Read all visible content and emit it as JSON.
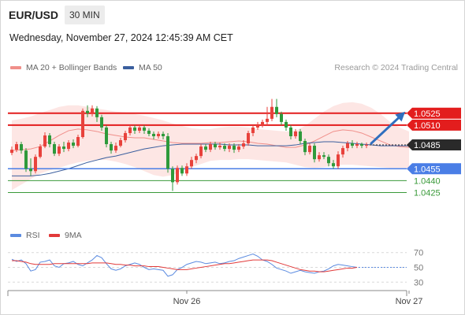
{
  "header": {
    "symbol": "EUR/USD",
    "timeframe": "30 MIN",
    "datetime": "Wednesday, November 27, 2024 12:45:39 AM CET"
  },
  "legend": {
    "ma20_label": "MA 20 + Bollinger Bands",
    "ma50_label": "MA 50",
    "credit": "Research © 2024 Trading Central",
    "rsi_label": "RSI",
    "ma9_label": "9MA"
  },
  "colors": {
    "bull": "#e8423c",
    "bear": "#2e9a3b",
    "ma20": "#f08f8a",
    "bollinger_fill": "#fde3e1",
    "ma50": "#3b5f9e",
    "resistance": "#e31d1d",
    "support_blue": "#4a7ee6",
    "support_green": "#3a9a3a",
    "current": "#2a2a2a",
    "arrow": "#2f6fbf",
    "rsi": "#5b8be0",
    "rsi_ma": "#e23a3a"
  },
  "chart_data": {
    "type": "candlestick",
    "symbol": "EUR/USD",
    "timeframe": "30 MIN",
    "ylim": [
      1.04175,
      1.05705
    ],
    "x_labels": [
      {
        "label": "Nov 26",
        "index": 37
      },
      {
        "label": "Nov 27",
        "index": 84
      }
    ],
    "price_levels": [
      {
        "label": "1.0525",
        "value": 1.0525,
        "style": "resistance"
      },
      {
        "label": "1.0510",
        "value": 1.051,
        "style": "resistance"
      },
      {
        "label": "1.0485",
        "value": 1.0485,
        "style": "current"
      },
      {
        "label": "1.0455",
        "value": 1.0455,
        "style": "support_blue"
      },
      {
        "label": "1.0440",
        "value": 1.044,
        "style": "support_green"
      },
      {
        "label": "1.0425",
        "value": 1.0425,
        "style": "support_green"
      }
    ],
    "forecast": {
      "direction": "up",
      "from": 1.0485,
      "to": 1.0525
    },
    "candles": [
      [
        1.0475,
        1.0479,
        1.0483,
        1.0472
      ],
      [
        1.0479,
        1.0486,
        1.0489,
        1.0476
      ],
      [
        1.0486,
        1.0478,
        1.0489,
        1.0474
      ],
      [
        1.0478,
        1.0455,
        1.0481,
        1.0451
      ],
      [
        1.0455,
        1.0452,
        1.0468,
        1.0446
      ],
      [
        1.0452,
        1.047,
        1.0473,
        1.0449
      ],
      [
        1.047,
        1.0483,
        1.0486,
        1.0468
      ],
      [
        1.0483,
        1.0497,
        1.0501,
        1.0481
      ],
      [
        1.0497,
        1.0486,
        1.05,
        1.0482
      ],
      [
        1.0486,
        1.0474,
        1.0489,
        1.0471
      ],
      [
        1.0474,
        1.0483,
        1.0486,
        1.0471
      ],
      [
        1.0483,
        1.048,
        1.0489,
        1.0476
      ],
      [
        1.048,
        1.0488,
        1.0491,
        1.0477
      ],
      [
        1.0488,
        1.0484,
        1.0492,
        1.0481
      ],
      [
        1.0484,
        1.0495,
        1.0498,
        1.0482
      ],
      [
        1.0495,
        1.0528,
        1.0531,
        1.0493
      ],
      [
        1.0528,
        1.0525,
        1.0535,
        1.052
      ],
      [
        1.0525,
        1.0531,
        1.0535,
        1.0521
      ],
      [
        1.0531,
        1.052,
        1.0534,
        1.0514
      ],
      [
        1.052,
        1.0507,
        1.0523,
        1.0503
      ],
      [
        1.0507,
        1.0486,
        1.051,
        1.0482
      ],
      [
        1.0486,
        1.0478,
        1.0489,
        1.0474
      ],
      [
        1.0478,
        1.0484,
        1.0488,
        1.0475
      ],
      [
        1.0484,
        1.0491,
        1.0494,
        1.0482
      ],
      [
        1.0491,
        1.05,
        1.0503,
        1.0488
      ],
      [
        1.05,
        1.0507,
        1.051,
        1.0497
      ],
      [
        1.0507,
        1.0503,
        1.051,
        1.0499
      ],
      [
        1.0503,
        1.0507,
        1.051,
        1.05
      ],
      [
        1.0507,
        1.0503,
        1.051,
        1.0499
      ],
      [
        1.0503,
        1.0499,
        1.0506,
        1.0496
      ],
      [
        1.0499,
        1.0496,
        1.0502,
        1.0492
      ],
      [
        1.0496,
        1.0499,
        1.0502,
        1.0493
      ],
      [
        1.0499,
        1.0496,
        1.0502,
        1.0492
      ],
      [
        1.0496,
        1.0455,
        1.05,
        1.045
      ],
      [
        1.0455,
        1.0438,
        1.0458,
        1.0427
      ],
      [
        1.0438,
        1.0456,
        1.0459,
        1.0435
      ],
      [
        1.0456,
        1.0449,
        1.0459,
        1.0446
      ],
      [
        1.0449,
        1.0458,
        1.0462,
        1.0446
      ],
      [
        1.0458,
        1.0466,
        1.047,
        1.0455
      ],
      [
        1.0466,
        1.0471,
        1.0474,
        1.0462
      ],
      [
        1.0471,
        1.0483,
        1.0486,
        1.0468
      ],
      [
        1.0483,
        1.0479,
        1.0486,
        1.0476
      ],
      [
        1.0479,
        1.0486,
        1.0489,
        1.0476
      ],
      [
        1.0486,
        1.0482,
        1.0489,
        1.0479
      ],
      [
        1.0482,
        1.0484,
        1.0488,
        1.0479
      ],
      [
        1.0484,
        1.048,
        1.0487,
        1.0477
      ],
      [
        1.048,
        1.0484,
        1.0487,
        1.0476
      ],
      [
        1.0484,
        1.0479,
        1.0487,
        1.0475
      ],
      [
        1.0479,
        1.0483,
        1.0486,
        1.0476
      ],
      [
        1.0483,
        1.0487,
        1.0491,
        1.048
      ],
      [
        1.0487,
        1.05,
        1.0503,
        1.0484
      ],
      [
        1.05,
        1.0507,
        1.051,
        1.0496
      ],
      [
        1.0507,
        1.051,
        1.0514,
        1.0504
      ],
      [
        1.051,
        1.0514,
        1.0517,
        1.0507
      ],
      [
        1.0514,
        1.0518,
        1.0533,
        1.051
      ],
      [
        1.0518,
        1.0533,
        1.0543,
        1.0515
      ],
      [
        1.0533,
        1.0524,
        1.0543,
        1.052
      ],
      [
        1.0524,
        1.0514,
        1.0527,
        1.051
      ],
      [
        1.0514,
        1.0507,
        1.0517,
        1.0503
      ],
      [
        1.0507,
        1.0496,
        1.051,
        1.0492
      ],
      [
        1.0496,
        1.0502,
        1.0505,
        1.0493
      ],
      [
        1.0502,
        1.049,
        1.0505,
        1.0486
      ],
      [
        1.049,
        1.0476,
        1.0493,
        1.0472
      ],
      [
        1.0476,
        1.0484,
        1.0487,
        1.0473
      ],
      [
        1.0484,
        1.0467,
        1.0487,
        1.0463
      ],
      [
        1.0467,
        1.0472,
        1.0476,
        1.0464
      ],
      [
        1.0472,
        1.047,
        1.0476,
        1.0467
      ],
      [
        1.047,
        1.0462,
        1.0473,
        1.0458
      ],
      [
        1.0462,
        1.0458,
        1.0466,
        1.0455
      ],
      [
        1.0458,
        1.0473,
        1.0477,
        1.0455
      ],
      [
        1.0473,
        1.0481,
        1.0484,
        1.0469
      ],
      [
        1.0481,
        1.0487,
        1.049,
        1.0477
      ],
      [
        1.0487,
        1.0484,
        1.0491,
        1.0481
      ],
      [
        1.0484,
        1.0486,
        1.0489,
        1.0481
      ],
      [
        1.0486,
        1.0484,
        1.0488,
        1.0481
      ],
      [
        1.0484,
        1.0485,
        1.0488,
        1.0481
      ]
    ],
    "bollinger": {
      "ma20": [
        1.0478,
        1.0479,
        1.048,
        1.0483,
        1.049,
        1.0497,
        1.0503,
        1.0505,
        1.0504,
        1.0502,
        1.0499,
        1.0497,
        1.0495,
        1.0494,
        1.0494,
        1.0492,
        1.049,
        1.0488,
        1.0487,
        1.0487,
        1.0487,
        1.0488,
        1.0488,
        1.0489,
        1.049,
        1.0489,
        1.0487,
        1.0486,
        1.0484,
        1.0482,
        1.0482,
        1.0485,
        1.049,
        1.0496,
        1.0502,
        1.0504,
        1.0503,
        1.05,
        1.0495,
        1.049,
        1.0485,
        1.0483,
        1.0482
      ],
      "upper": [
        1.0516,
        1.0518,
        1.0521,
        1.0525,
        1.0529,
        1.0533,
        1.0535,
        1.0535,
        1.0533,
        1.0531,
        1.0529,
        1.0527,
        1.0526,
        1.0524,
        1.0522,
        1.0519,
        1.0516,
        1.0512,
        1.0509,
        1.0506,
        1.0505,
        1.0505,
        1.0507,
        1.0508,
        1.0508,
        1.0507,
        1.0505,
        1.0504,
        1.0503,
        1.0502,
        1.0503,
        1.0509,
        1.0518,
        1.0527,
        1.0534,
        1.0538,
        1.0539,
        1.0537,
        1.0532,
        1.0524,
        1.0514,
        1.0507,
        1.0502
      ],
      "lower": [
        1.0428,
        1.0435,
        1.0442,
        1.0449,
        1.0453,
        1.0456,
        1.046,
        1.0463,
        1.0465,
        1.0466,
        1.0466,
        1.0464,
        1.0461,
        1.0457,
        1.0452,
        1.0447,
        1.0445,
        1.0447,
        1.0452,
        1.0457,
        1.0461,
        1.0465,
        1.0466,
        1.0466,
        1.0467,
        1.0467,
        1.0466,
        1.0465,
        1.0464,
        1.0463,
        1.046,
        1.0457,
        1.0456,
        1.0457,
        1.0459,
        1.046,
        1.046,
        1.0459,
        1.0458,
        1.0457,
        1.0456,
        1.0456,
        1.0456
      ]
    },
    "ma50": [
      1.0446,
      1.0446,
      1.0446,
      1.0447,
      1.0449,
      1.0452,
      1.0455,
      1.0459,
      1.0463,
      1.0466,
      1.0469,
      1.0471,
      1.0474,
      1.0477,
      1.048,
      1.0482,
      1.0484,
      1.0485,
      1.0486,
      1.0486,
      1.0486,
      1.0486,
      1.0486,
      1.0485,
      1.0485,
      1.0485,
      1.0484,
      1.0484,
      1.0484,
      1.0484,
      1.0485,
      1.0487,
      1.0488,
      1.0489,
      1.0489,
      1.0488,
      1.0487,
      1.0486,
      1.0485,
      1.0484,
      1.0484,
      1.0484,
      1.0484
    ],
    "rsi_panel": {
      "ylim": [
        25,
        75
      ],
      "levels": [
        70,
        50,
        30
      ],
      "rsi": [
        61,
        58,
        60,
        55,
        45,
        47,
        57,
        58,
        60,
        52,
        50,
        55,
        56,
        58,
        54,
        52,
        56,
        60,
        66,
        63,
        55,
        48,
        46,
        48,
        52,
        54,
        56,
        54,
        50,
        47,
        48,
        47,
        46,
        38,
        40,
        47,
        50,
        54,
        56,
        58,
        57,
        55,
        56,
        57,
        55,
        56,
        58,
        59,
        62,
        64,
        66,
        68,
        65,
        60,
        58,
        54,
        49,
        47,
        45,
        42,
        44,
        46,
        44,
        43,
        42,
        44,
        45,
        48,
        52,
        54,
        53,
        52,
        51,
        50
      ],
      "ma9": [
        59,
        59,
        58,
        57,
        55,
        54,
        54,
        54,
        54,
        55,
        55,
        55,
        55,
        55,
        55,
        55,
        55,
        56,
        56,
        56,
        56,
        55,
        54,
        54,
        53,
        53,
        52,
        52,
        52,
        51,
        51,
        51,
        50,
        49,
        48,
        47,
        47,
        47,
        48,
        49,
        50,
        51,
        52,
        53,
        54,
        55,
        55,
        56,
        57,
        58,
        59,
        60,
        60,
        60,
        60,
        59,
        57,
        55,
        53,
        51,
        49,
        47,
        46,
        45,
        45,
        44,
        44,
        45,
        46,
        47,
        48,
        49,
        49,
        50
      ]
    }
  }
}
